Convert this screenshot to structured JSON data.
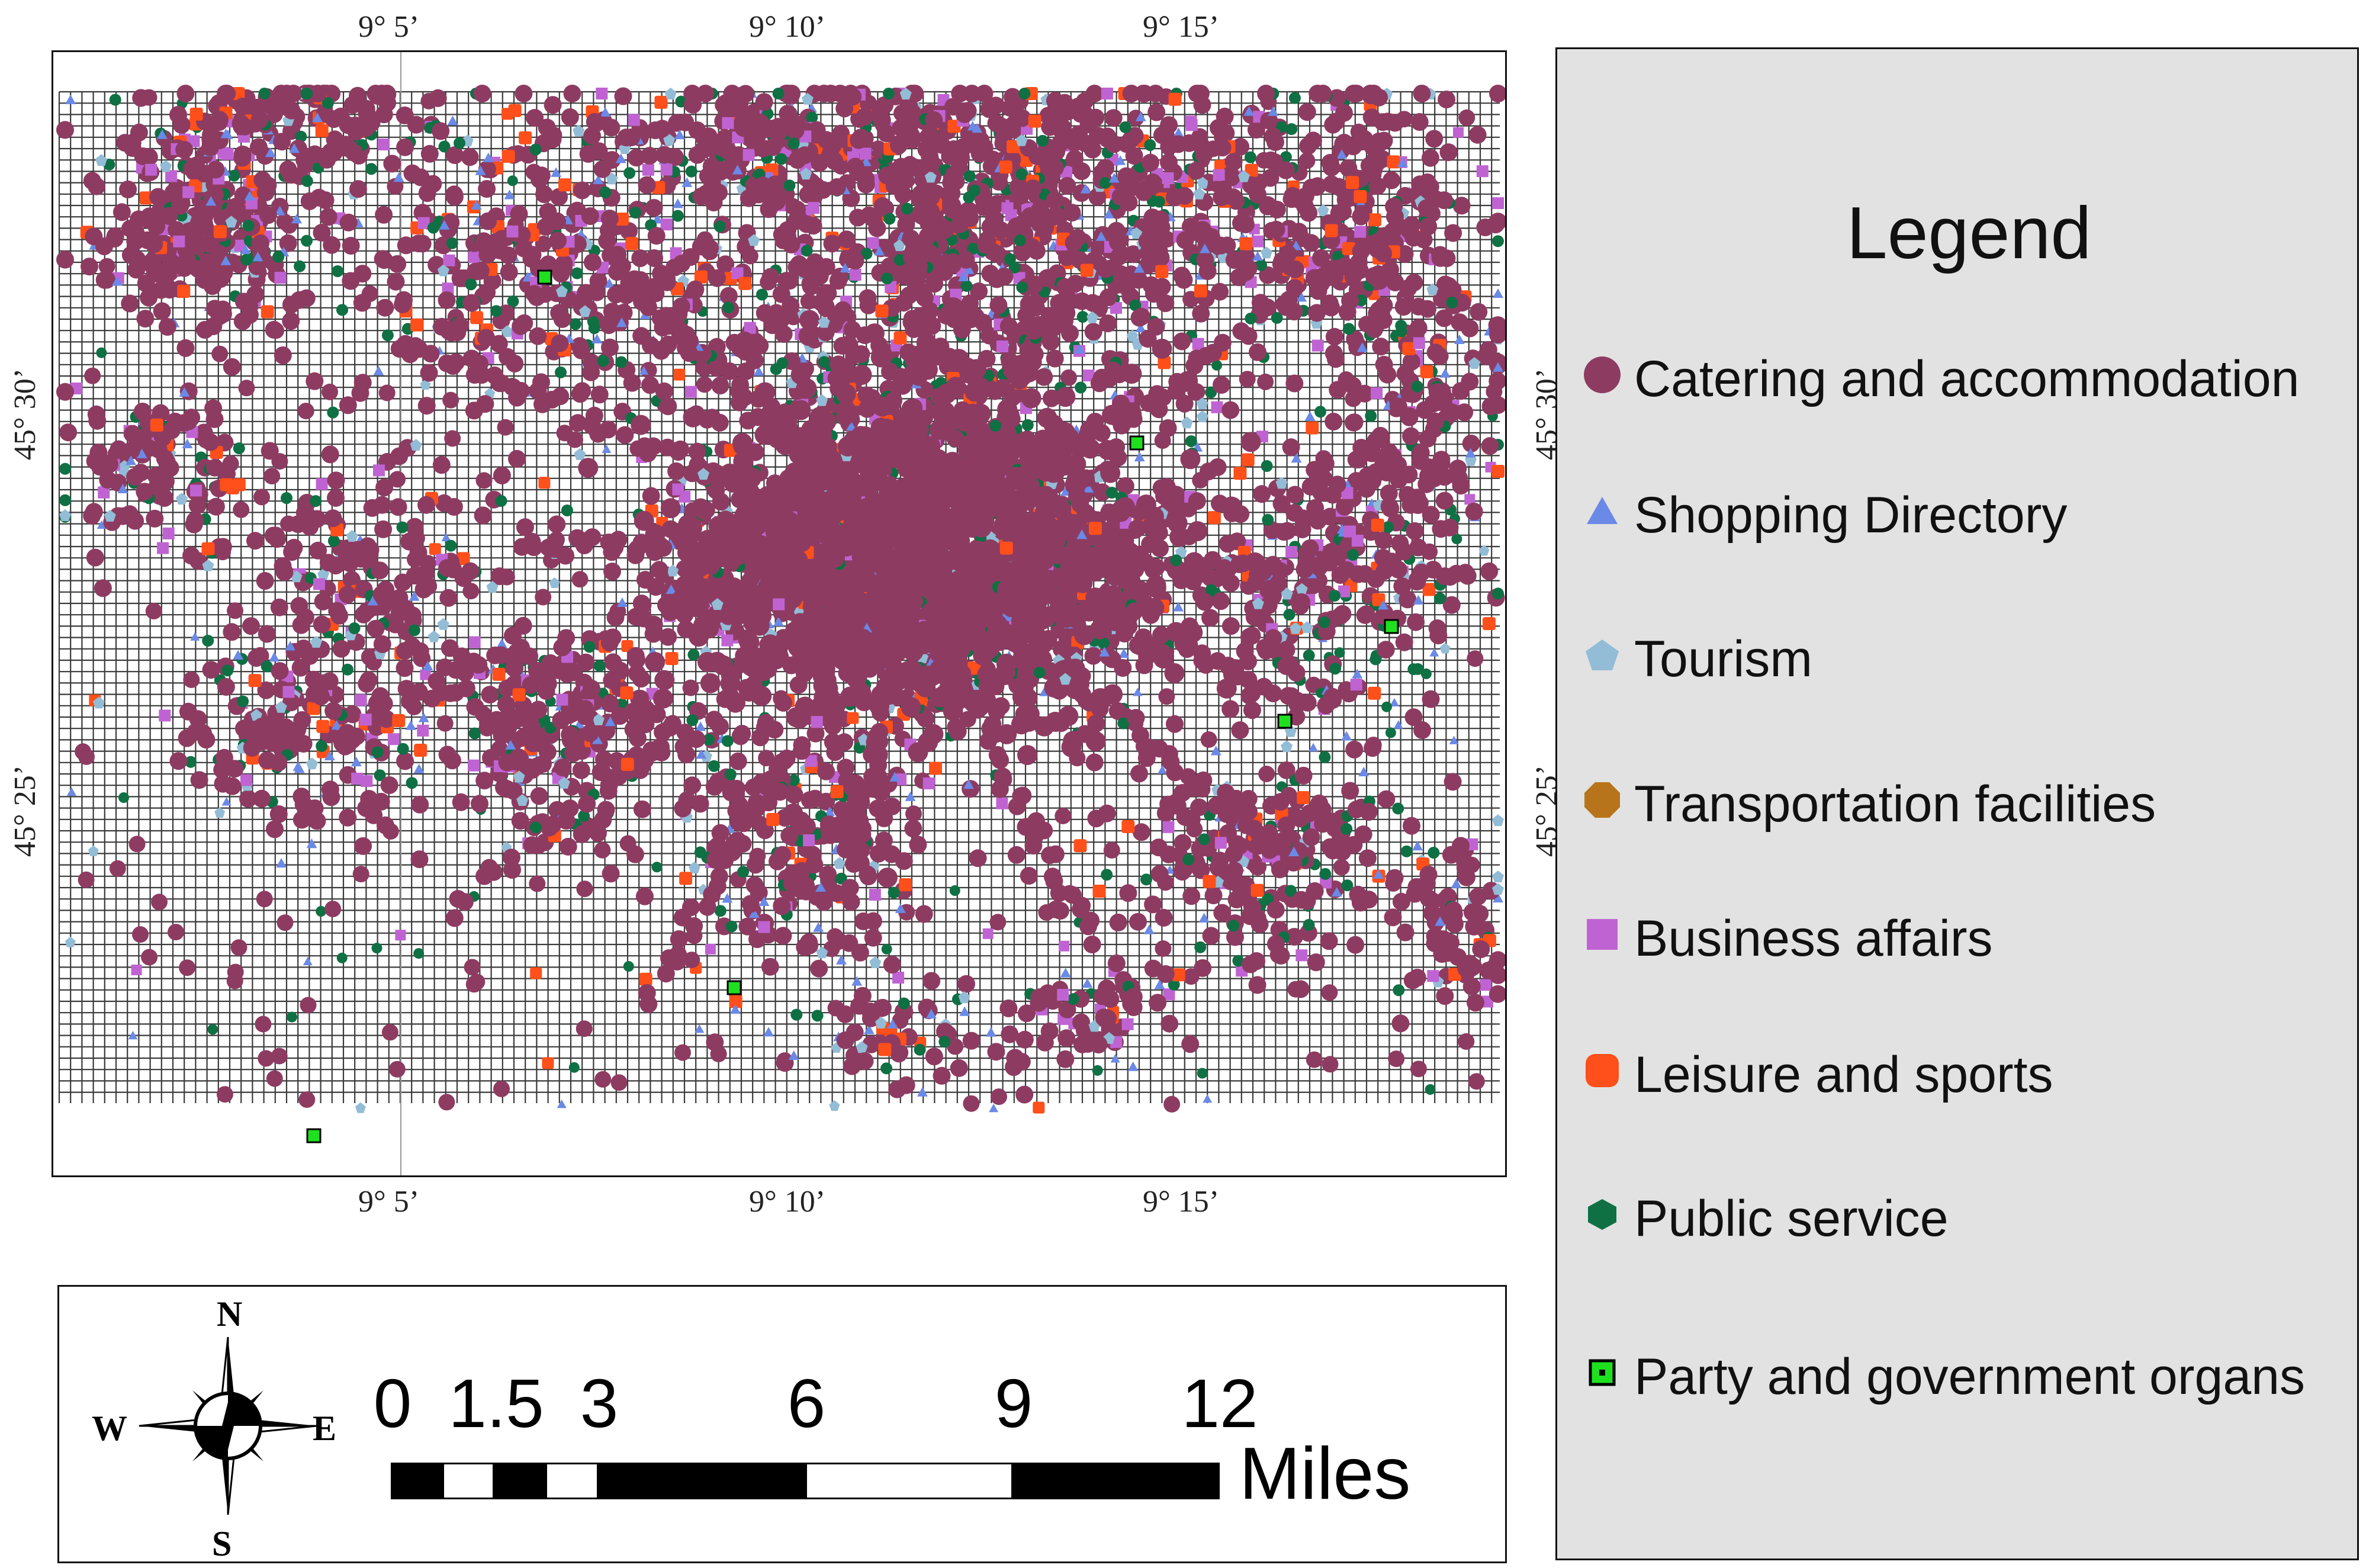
{
  "map": {
    "top_ticks": [
      "9° 5’",
      "9° 10’",
      "9° 15’"
    ],
    "bottom_ticks": [
      "9° 5’",
      "9° 10’",
      "9° 15’"
    ],
    "left_ticks": [
      "45° 30’",
      "45° 25’"
    ],
    "right_ticks": [
      "45° 30’",
      "45° 25’"
    ],
    "background": "#ffffff",
    "grid_color": "#3a3a3a"
  },
  "legend": {
    "title": "Legend",
    "items": [
      {
        "label": "Catering and accommodation",
        "symbol": "circle",
        "color": "#8e3b62",
        "icon": "circle-icon"
      },
      {
        "label": "Shopping Directory",
        "symbol": "triangle",
        "color": "#6b89e6",
        "icon": "triangle-icon"
      },
      {
        "label": "Tourism",
        "symbol": "pentagon",
        "color": "#93bcd6",
        "icon": "pentagon-icon"
      },
      {
        "label": "Transportation facilities",
        "symbol": "octagon",
        "color": "#b8741a",
        "icon": "octagon-icon"
      },
      {
        "label": "Business affairs",
        "symbol": "square",
        "color": "#c063d2",
        "icon": "square-icon"
      },
      {
        "label": "Leisure and sports",
        "symbol": "rounded-square",
        "color": "#ff4f1a",
        "icon": "rounded-square-icon"
      },
      {
        "label": "Public service",
        "symbol": "hexagon",
        "color": "#0f7044",
        "icon": "hexagon-icon"
      },
      {
        "label": "Party and government organs",
        "symbol": "square-dot",
        "color": "#1fe01f",
        "icon": "square-dot-icon"
      }
    ]
  },
  "scale": {
    "ticks": [
      "0",
      "1.5",
      "3",
      "6",
      "9",
      "12"
    ],
    "unit": "Miles"
  },
  "compass": {
    "north": "N",
    "south": "S",
    "east": "E",
    "west": "W"
  }
}
